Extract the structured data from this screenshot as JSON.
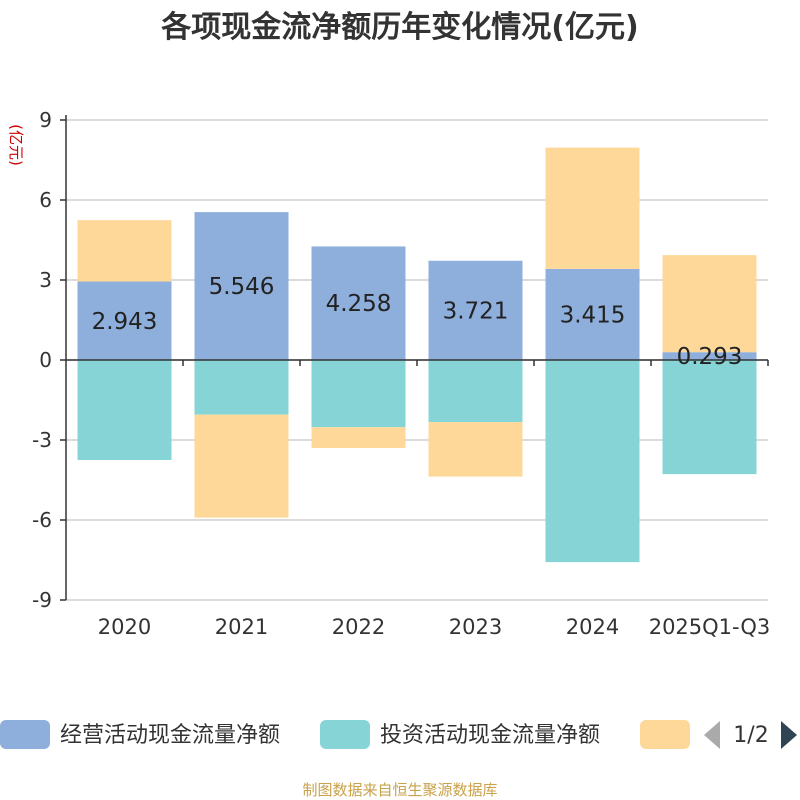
{
  "chart_data": {
    "type": "bar",
    "stacked": true,
    "title": "各项现金流净额历年变化情况(亿元)",
    "ylabel": "(亿元)",
    "categories": [
      "2020",
      "2021",
      "2022",
      "2023",
      "2024",
      "2025Q1-Q3"
    ],
    "ylim": [
      -9,
      9
    ],
    "yticks": [
      9,
      6,
      3,
      0,
      -3,
      -6,
      -9
    ],
    "grid": true,
    "series": [
      {
        "name": "经营活动现金流量净额",
        "color": "#8eaedb",
        "values": [
          2.943,
          5.546,
          4.258,
          3.721,
          3.415,
          0.293
        ],
        "labels": [
          "2.943",
          "5.546",
          "4.258",
          "3.721",
          "3.415",
          "0.293"
        ]
      },
      {
        "name": "投资活动现金流量净额",
        "color": "#86d4d6",
        "values": [
          -3.75,
          -2.05,
          -2.52,
          -2.33,
          -7.58,
          -4.28
        ]
      },
      {
        "name": "",
        "color": "#fed899",
        "values": [
          2.3,
          -3.86,
          -0.78,
          -2.04,
          4.55,
          3.64
        ]
      }
    ],
    "legend": {
      "position": "bottom",
      "page": "1/2"
    },
    "source": "制图数据来自恒生聚源数据库"
  }
}
